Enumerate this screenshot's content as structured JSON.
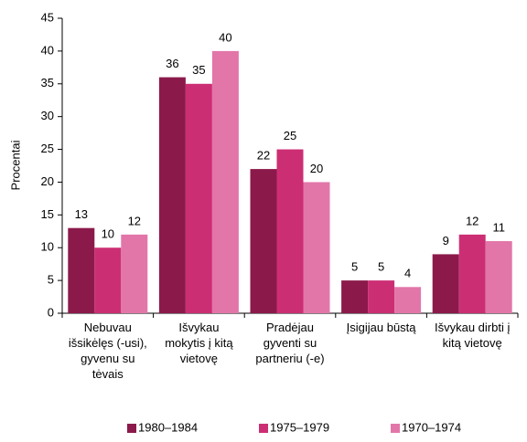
{
  "chart_data": {
    "type": "bar",
    "y_label": "Procentai",
    "categories": [
      [
        "Nebuvau",
        "išsikėlęs (-usi),",
        "gyvenu su",
        "tėvais"
      ],
      [
        "Išvykau",
        "mokytis į kitą",
        "vietovę"
      ],
      [
        "Pradėjau",
        "gyventi su",
        "partneriu (-e)"
      ],
      [
        "Įsigijau būstą"
      ],
      [
        "Išvykau dirbti į",
        "kitą vietovę"
      ]
    ],
    "series": [
      {
        "name": "1980–1984",
        "color": "#8b1a4b",
        "values": [
          13,
          36,
          22,
          5,
          9
        ]
      },
      {
        "name": "1975–1979",
        "color": "#cc2e74",
        "values": [
          10,
          35,
          25,
          5,
          12
        ]
      },
      {
        "name": "1970–1974",
        "color": "#e276a9",
        "values": [
          12,
          40,
          20,
          4,
          11
        ]
      }
    ],
    "ylim": [
      0,
      45
    ],
    "yticks": [
      0,
      5,
      10,
      15,
      20,
      25,
      30,
      35,
      40,
      45
    ],
    "legend": "bottom"
  }
}
